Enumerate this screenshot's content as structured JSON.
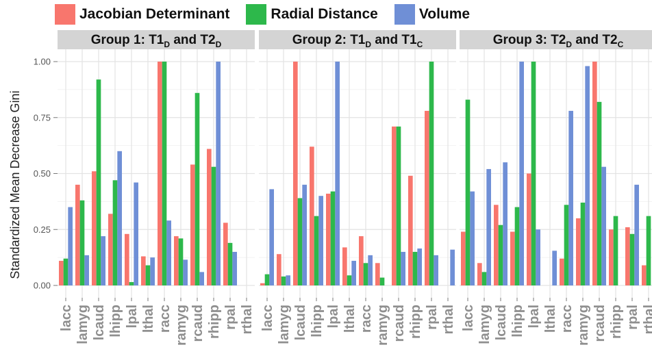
{
  "colors": {
    "jacobian": "#f8766d",
    "radial": "#2db84b",
    "volume": "#6f8fd6",
    "strip_bg": "#d4d4d4",
    "panel_bg": "#ffffff",
    "grid": "#e3e3e3"
  },
  "legend": [
    {
      "label": "Jacobian Determinant",
      "color": "#f8766d"
    },
    {
      "label": "Radial Distance",
      "color": "#2db84b"
    },
    {
      "label": "Volume",
      "color": "#6f8fd6"
    }
  ],
  "chart_data": {
    "type": "bar",
    "ylabel": "Standardized Mean Decrease Gini",
    "xlabel": "",
    "ylim": [
      0,
      1.05
    ],
    "yticks": [
      "0.00",
      "0.25",
      "0.50",
      "0.75",
      "1.00"
    ],
    "ytick_values": [
      0,
      0.25,
      0.5,
      0.75,
      1.0
    ],
    "grid": true,
    "legend_position": "top-left",
    "categories": [
      "lacc",
      "lamyg",
      "lcaud",
      "lhipp",
      "lpal",
      "lthal",
      "racc",
      "ramyg",
      "rcaud",
      "rhipp",
      "rpal",
      "rthal"
    ],
    "series_names": [
      "Jacobian Determinant",
      "Radial Distance",
      "Volume"
    ],
    "panels": [
      {
        "title_main": "Group 1: T1",
        "title_sub1": "D",
        "title_mid": " and T2",
        "title_sub2": "D",
        "series": [
          {
            "name": "Jacobian Determinant",
            "values": [
              0.11,
              0.45,
              0.51,
              0.32,
              0.23,
              0.13,
              1.0,
              0.22,
              0.54,
              0.61,
              0.28,
              0.0
            ]
          },
          {
            "name": "Radial Distance",
            "values": [
              0.12,
              0.38,
              0.92,
              0.47,
              0.015,
              0.09,
              1.0,
              0.21,
              0.86,
              0.53,
              0.19,
              0.0
            ]
          },
          {
            "name": "Volume",
            "values": [
              0.35,
              0.135,
              0.22,
              0.6,
              0.46,
              0.125,
              0.29,
              0.115,
              0.06,
              1.0,
              0.15,
              0.0
            ]
          }
        ]
      },
      {
        "title_main": "Group 2: T1",
        "title_sub1": "D",
        "title_mid": " and T1",
        "title_sub2": "C",
        "series": [
          {
            "name": "Jacobian Determinant",
            "values": [
              0.01,
              0.14,
              1.0,
              0.62,
              0.41,
              0.17,
              0.22,
              0.1,
              0.71,
              0.49,
              0.78,
              0.0
            ]
          },
          {
            "name": "Radial Distance",
            "values": [
              0.05,
              0.04,
              0.39,
              0.31,
              0.42,
              0.045,
              0.1,
              0.035,
              0.71,
              0.15,
              1.0,
              0.0
            ]
          },
          {
            "name": "Volume",
            "values": [
              0.43,
              0.045,
              0.45,
              0.4,
              1.0,
              0.11,
              0.135,
              0.0,
              0.15,
              0.165,
              0.135,
              0.16
            ]
          }
        ]
      },
      {
        "title_main": "Group 3: T2",
        "title_sub1": "D",
        "title_mid": " and T2",
        "title_sub2": "C",
        "series": [
          {
            "name": "Jacobian Determinant",
            "values": [
              0.24,
              0.1,
              0.36,
              0.24,
              0.5,
              0.0,
              0.12,
              0.3,
              1.0,
              0.25,
              0.26,
              0.09
            ]
          },
          {
            "name": "Radial Distance",
            "values": [
              0.83,
              0.06,
              0.27,
              0.35,
              1.0,
              0.0,
              0.36,
              0.37,
              0.82,
              0.31,
              0.23,
              0.31
            ]
          },
          {
            "name": "Volume",
            "values": [
              0.42,
              0.52,
              0.55,
              1.0,
              0.25,
              0.155,
              0.78,
              0.98,
              0.53,
              0.0,
              0.45,
              0.0
            ]
          }
        ]
      }
    ]
  }
}
